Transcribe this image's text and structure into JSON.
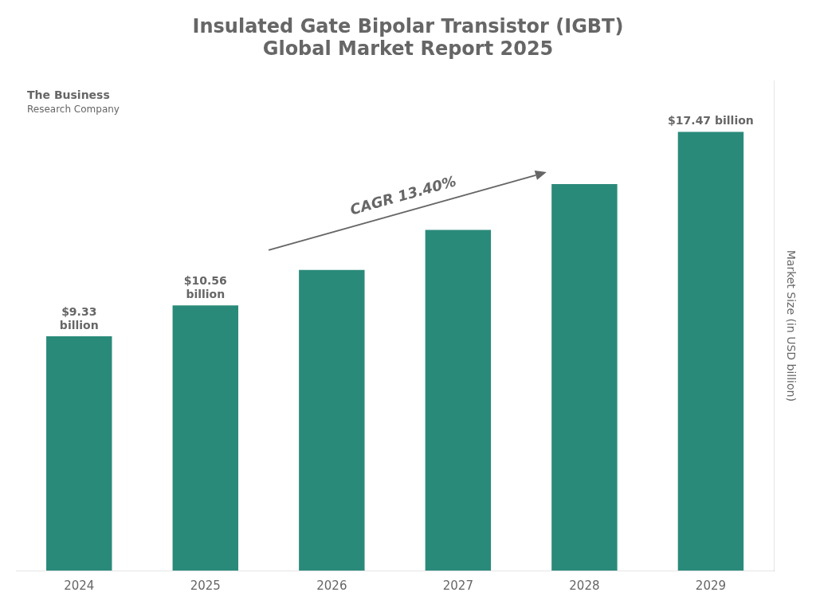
{
  "chart_data": {
    "type": "bar",
    "title": "Insulated Gate Bipolar Transistor (IGBT)\nGlobal Market Report 2025",
    "categories": [
      "2024",
      "2025",
      "2026",
      "2027",
      "2028",
      "2029"
    ],
    "values": [
      9.33,
      10.56,
      11.97,
      13.57,
      15.39,
      17.47
    ],
    "value_labels": [
      "$9.33\nbillion",
      "$10.56\nbillion",
      null,
      null,
      null,
      "$17.47 billion"
    ],
    "data_labels": true,
    "color": "#2a8a7a",
    "ylabel": "Market Size (in USD billion)",
    "ylim": [
      0,
      19.5
    ],
    "yticks": [],
    "tick_labels": "x",
    "grid": false,
    "annotations": [
      "CAGR 13.40%",
      "The Business\nResearch Company"
    ]
  }
}
